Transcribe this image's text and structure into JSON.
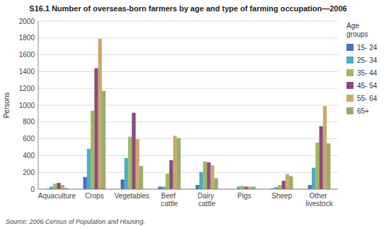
{
  "chart_data": {
    "type": "bar",
    "title": "S16.1 Number of overseas-born farmers by age and type of farming occupation—2006",
    "y_label": "Persons",
    "source": "Source: 2006 Census of Population and Housing.",
    "legend_title": "Age\ngroups",
    "categories": [
      "Aquaculture",
      "Crops",
      "Vegetables",
      "Beef cattle",
      "Dairy cattle",
      "Pigs",
      "Sheep",
      "Other livestock"
    ],
    "series": [
      {
        "name": "15- 24",
        "color": "#4472c4",
        "values": [
          5,
          145,
          115,
          30,
          50,
          0,
          10,
          50
        ]
      },
      {
        "name": "25- 34",
        "color": "#4bacc6",
        "values": [
          30,
          480,
          370,
          30,
          205,
          30,
          25,
          255
        ]
      },
      {
        "name": "35- 44",
        "color": "#9bbb59",
        "values": [
          65,
          935,
          625,
          185,
          330,
          40,
          50,
          555
        ]
      },
      {
        "name": "45- 54",
        "color": "#8c4a7e",
        "values": [
          75,
          1440,
          910,
          345,
          320,
          30,
          100,
          750
        ]
      },
      {
        "name": "55- 64",
        "color": "#c8a96e",
        "values": [
          50,
          1790,
          595,
          635,
          285,
          30,
          180,
          990
        ]
      },
      {
        "name": "65+",
        "color": "#9aaa6a",
        "values": [
          15,
          1170,
          275,
          610,
          130,
          30,
          155,
          545
        ]
      }
    ],
    "ylim": [
      0,
      2000
    ],
    "yticks": [
      0,
      200,
      400,
      600,
      800,
      1000,
      1200,
      1400,
      1600,
      1800,
      2000
    ],
    "grid": true,
    "legend": "right"
  }
}
